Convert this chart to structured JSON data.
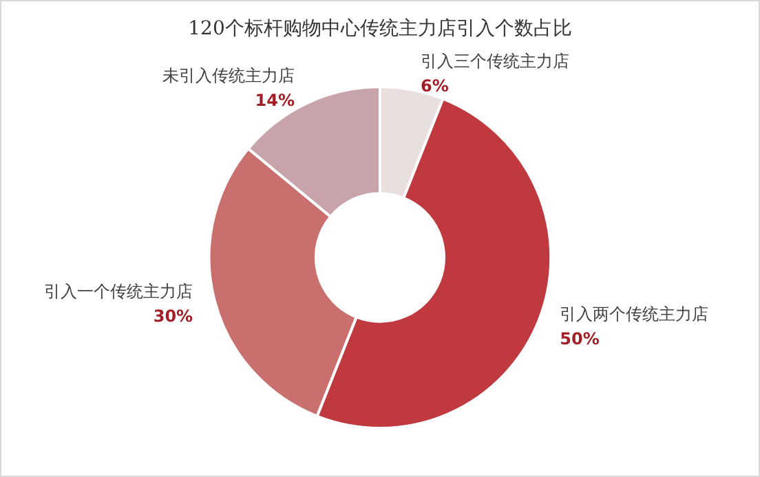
{
  "chart_data": {
    "type": "donut",
    "title": "120个标杆购物中心传统主力店引入个数占比",
    "categories": [
      "引入三个传统主力店",
      "引入两个传统主力店",
      "引入一个传统主力店",
      "未引入传统主力店"
    ],
    "values": [
      6,
      50,
      30,
      14
    ],
    "value_labels": [
      "6%",
      "50%",
      "30%",
      "14%"
    ],
    "colors": [
      "#e9dfdf",
      "#c0393f",
      "#c9706f",
      "#c9a3aa"
    ],
    "legend": false
  }
}
